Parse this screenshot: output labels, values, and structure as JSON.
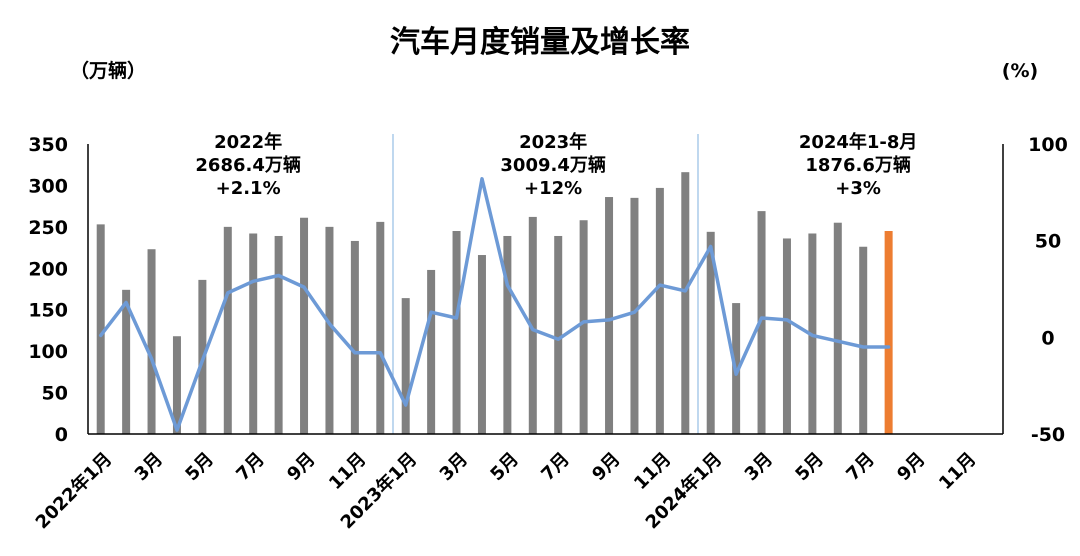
{
  "chart_data": {
    "type": "bar",
    "title": "汽车月度销量及增长率",
    "y_left_label": "（万辆）",
    "y_right_label": "(%)",
    "y_left_ticks": [
      "350",
      "300",
      "250",
      "200",
      "150",
      "100",
      "50",
      "0"
    ],
    "y_right_ticks": [
      "100",
      "50",
      "0",
      "-50"
    ],
    "ylim_left": [
      0,
      350
    ],
    "ylim_right": [
      -50,
      100
    ],
    "x_tick_labels": [
      "2022年1月",
      "3月",
      "5月",
      "7月",
      "9月",
      "11月",
      "2023年1月",
      "3月",
      "5月",
      "7月",
      "9月",
      "11月",
      "2024年1月",
      "3月",
      "5月",
      "7月",
      "9月",
      "11月"
    ],
    "categories": [
      "2022-01",
      "2022-02",
      "2022-03",
      "2022-04",
      "2022-05",
      "2022-06",
      "2022-07",
      "2022-08",
      "2022-09",
      "2022-10",
      "2022-11",
      "2022-12",
      "2023-01",
      "2023-02",
      "2023-03",
      "2023-04",
      "2023-05",
      "2023-06",
      "2023-07",
      "2023-08",
      "2023-09",
      "2023-10",
      "2023-11",
      "2023-12",
      "2024-01",
      "2024-02",
      "2024-03",
      "2024-04",
      "2024-05",
      "2024-06",
      "2024-07",
      "2024-08",
      "2024-09",
      "2024-10",
      "2024-11",
      "2024-12"
    ],
    "sales": [
      253,
      174,
      223,
      118,
      186,
      250,
      242,
      239,
      261,
      250,
      233,
      256,
      164,
      198,
      245,
      216,
      239,
      262,
      239,
      258,
      286,
      285,
      297,
      316,
      244,
      158,
      269,
      236,
      242,
      255,
      226,
      245
    ],
    "growth": [
      1,
      18,
      -11,
      -48,
      -12,
      23,
      29,
      32,
      26,
      7,
      -8,
      -8,
      -35,
      13,
      10,
      82,
      27,
      4,
      -1,
      8,
      9,
      13,
      27,
      24,
      47,
      -19,
      10,
      9,
      1,
      -2,
      -5,
      -5
    ],
    "highlight_index": 31,
    "annotations": [
      {
        "lines": [
          "2022年",
          "2686.4万辆",
          "+2.1%"
        ]
      },
      {
        "lines": [
          "2023年",
          "3009.4万辆",
          "+12%"
        ]
      },
      {
        "lines": [
          "2024年1-8月",
          "1876.6万辆",
          "+3%"
        ]
      }
    ],
    "colors": {
      "bar": "#808080",
      "highlight": "#ED7D31",
      "line": "#6D9AD6",
      "divider": "#9DC3E6"
    }
  }
}
